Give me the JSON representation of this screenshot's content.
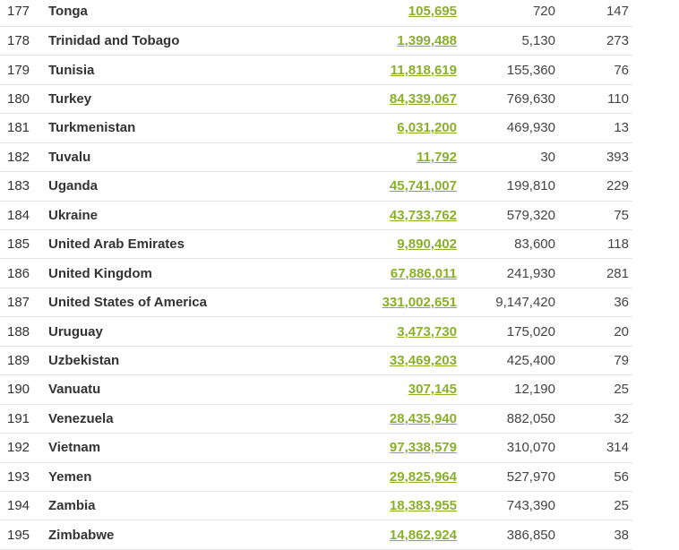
{
  "rows": [
    {
      "rank": "177",
      "country": "Tonga",
      "population": "105,695",
      "area": "720",
      "density": "147"
    },
    {
      "rank": "178",
      "country": "Trinidad and Tobago",
      "population": "1,399,488",
      "area": "5,130",
      "density": "273"
    },
    {
      "rank": "179",
      "country": "Tunisia",
      "population": "11,818,619",
      "area": "155,360",
      "density": "76"
    },
    {
      "rank": "180",
      "country": "Turkey",
      "population": "84,339,067",
      "area": "769,630",
      "density": "110"
    },
    {
      "rank": "181",
      "country": "Turkmenistan",
      "population": "6,031,200",
      "area": "469,930",
      "density": "13"
    },
    {
      "rank": "182",
      "country": "Tuvalu",
      "population": "11,792",
      "area": "30",
      "density": "393"
    },
    {
      "rank": "183",
      "country": "Uganda",
      "population": "45,741,007",
      "area": "199,810",
      "density": "229"
    },
    {
      "rank": "184",
      "country": "Ukraine",
      "population": "43,733,762",
      "area": "579,320",
      "density": "75"
    },
    {
      "rank": "185",
      "country": "United Arab Emirates",
      "population": "9,890,402",
      "area": "83,600",
      "density": "118"
    },
    {
      "rank": "186",
      "country": "United Kingdom",
      "population": "67,886,011",
      "area": "241,930",
      "density": "281"
    },
    {
      "rank": "187",
      "country": "United States of America",
      "population": "331,002,651",
      "area": "9,147,420",
      "density": "36"
    },
    {
      "rank": "188",
      "country": "Uruguay",
      "population": "3,473,730",
      "area": "175,020",
      "density": "20"
    },
    {
      "rank": "189",
      "country": "Uzbekistan",
      "population": "33,469,203",
      "area": "425,400",
      "density": "79"
    },
    {
      "rank": "190",
      "country": "Vanuatu",
      "population": "307,145",
      "area": "12,190",
      "density": "25"
    },
    {
      "rank": "191",
      "country": "Venezuela",
      "population": "28,435,940",
      "area": "882,050",
      "density": "32"
    },
    {
      "rank": "192",
      "country": "Vietnam",
      "population": "97,338,579",
      "area": "310,070",
      "density": "314"
    },
    {
      "rank": "193",
      "country": "Yemen",
      "population": "29,825,964",
      "area": "527,970",
      "density": "56"
    },
    {
      "rank": "194",
      "country": "Zambia",
      "population": "18,383,955",
      "area": "743,390",
      "density": "25"
    },
    {
      "rank": "195",
      "country": "Zimbabwe",
      "population": "14,862,924",
      "area": "386,850",
      "density": "38"
    }
  ],
  "colors": {
    "population_link": "#8ab02a",
    "text": "#333333",
    "row_border": "#e3e3e3"
  }
}
